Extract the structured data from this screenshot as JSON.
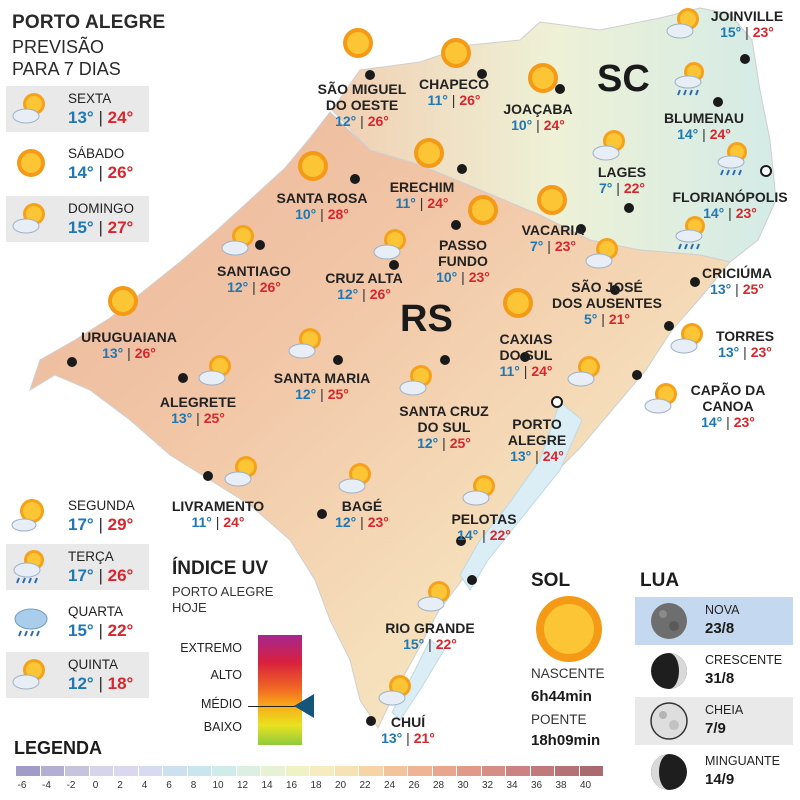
{
  "header": {
    "title": "PORTO ALEGRE",
    "subtitle1": "PREVISÃO",
    "subtitle2": "PARA 7 DIAS"
  },
  "forecast": [
    {
      "day": "SEXTA",
      "min": "13°",
      "max": "24°",
      "icon": "partly-cloudy-icon"
    },
    {
      "day": "SÁBADO",
      "min": "14°",
      "max": "26°",
      "icon": "sun-icon"
    },
    {
      "day": "DOMINGO",
      "min": "15°",
      "max": "27°",
      "icon": "partly-cloudy-icon"
    },
    {
      "day": "SEGUNDA",
      "min": "17°",
      "max": "29°",
      "icon": "sun-cloud-icon"
    },
    {
      "day": "TERÇA",
      "min": "17°",
      "max": "26°",
      "icon": "sun-rain-icon"
    },
    {
      "day": "QUARTA",
      "min": "15°",
      "max": "22°",
      "icon": "rain-cloud-icon"
    },
    {
      "day": "QUINTA",
      "min": "12°",
      "max": "18°",
      "icon": "partly-cloudy-icon"
    }
  ],
  "regions": {
    "rs": "RS",
    "sc": "SC"
  },
  "cities": [
    {
      "name1": "SÃO MIGUEL",
      "name2": "DO OESTE",
      "min": "12°",
      "max": "26°"
    },
    {
      "name1": "CHAPECÓ",
      "min": "11°",
      "max": "26°"
    },
    {
      "name1": "JOAÇABA",
      "min": "10°",
      "max": "24°"
    },
    {
      "name1": "JOINVILLE",
      "min": "15°",
      "max": "23°"
    },
    {
      "name1": "BLUMENAU",
      "min": "14°",
      "max": "24°"
    },
    {
      "name1": "LAGES",
      "min": "7°",
      "max": "22°"
    },
    {
      "name1": "FLORIANÓPOLIS",
      "min": "14°",
      "max": "23°"
    },
    {
      "name1": "SANTA ROSA",
      "min": "10°",
      "max": "28°"
    },
    {
      "name1": "ERECHIM",
      "min": "11°",
      "max": "24°"
    },
    {
      "name1": "VACARIA",
      "min": "7°",
      "max": "23°"
    },
    {
      "name1": "PASSO",
      "name2": "FUNDO",
      "min": "10°",
      "max": "23°"
    },
    {
      "name1": "SANTIAGO",
      "min": "12°",
      "max": "26°"
    },
    {
      "name1": "CRUZ ALTA",
      "min": "12°",
      "max": "26°"
    },
    {
      "name1": "CRICIÚMA",
      "min": "13°",
      "max": "25°"
    },
    {
      "name1": "SÃO JOSÉ",
      "name2": "DOS AUSENTES",
      "min": "5°",
      "max": "21°"
    },
    {
      "name1": "URUGUAIANA",
      "min": "13°",
      "max": "26°"
    },
    {
      "name1": "TORRES",
      "min": "13°",
      "max": "23°"
    },
    {
      "name1": "CAXIAS",
      "name2": "DO SUL",
      "min": "11°",
      "max": "24°"
    },
    {
      "name1": "SANTA MARIA",
      "min": "12°",
      "max": "25°"
    },
    {
      "name1": "ALEGRETE",
      "min": "13°",
      "max": "25°"
    },
    {
      "name1": "CAPÃO DA",
      "name2": "CANOA",
      "min": "14°",
      "max": "23°"
    },
    {
      "name1": "SANTA CRUZ",
      "name2": "DO SUL",
      "min": "12°",
      "max": "25°"
    },
    {
      "name1": "PORTO",
      "name2": "ALEGRE",
      "min": "13°",
      "max": "24°"
    },
    {
      "name1": "LIVRAMENTO",
      "min": "11°",
      "max": "24°"
    },
    {
      "name1": "BAGÉ",
      "min": "12°",
      "max": "23°"
    },
    {
      "name1": "PELOTAS",
      "min": "14°",
      "max": "22°"
    },
    {
      "name1": "RIO GRANDE",
      "min": "15°",
      "max": "22°"
    },
    {
      "name1": "CHUÍ",
      "min": "13°",
      "max": "21°"
    }
  ],
  "uv": {
    "title": "ÍNDICE UV",
    "sub1": "PORTO ALEGRE",
    "sub2": "HOJE",
    "levels": [
      "EXTREMO",
      "ALTO",
      "MÉDIO",
      "BAIXO"
    ],
    "current_level": "MÉDIO"
  },
  "sun": {
    "title": "SOL",
    "sunrise_label": "NASCENTE",
    "sunrise": "6h44min",
    "sunset_label": "POENTE",
    "sunset": "18h09min"
  },
  "moon": {
    "title": "LUA",
    "phases": [
      {
        "phase": "NOVA",
        "date": "23/8",
        "highlight": true
      },
      {
        "phase": "CRESCENTE",
        "date": "31/8",
        "highlight": false
      },
      {
        "phase": "CHEIA",
        "date": "7/9",
        "highlight": false
      },
      {
        "phase": "MINGUANTE",
        "date": "14/9",
        "highlight": false
      }
    ]
  },
  "legend": {
    "title": "LEGENDA",
    "ticks": [
      "-6",
      "-4",
      "-2",
      "0",
      "2",
      "4",
      "6",
      "8",
      "10",
      "12",
      "14",
      "16",
      "18",
      "20",
      "22",
      "24",
      "26",
      "28",
      "30",
      "32",
      "34",
      "36",
      "38",
      "40"
    ],
    "colors": [
      "#9f9cc7",
      "#b3afd3",
      "#c6c3df",
      "#d5d4ea",
      "#dad8ef",
      "#d6dbf1",
      "#cde0f0",
      "#c9e6ef",
      "#cfeceb",
      "#dcefe0",
      "#e7f1d4",
      "#f1f1c6",
      "#f6ecbf",
      "#f7e2b4",
      "#f6d4a6",
      "#f3c49b",
      "#eeb494",
      "#e9a68f",
      "#e1998a",
      "#d68d85",
      "#cc8282",
      "#c07a7c",
      "#b47276",
      "#a96a70"
    ]
  }
}
